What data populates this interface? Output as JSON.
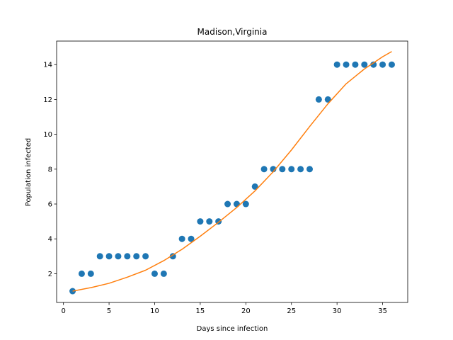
{
  "chart_data": {
    "type": "scatter",
    "title": "Madison,Virginia",
    "xlabel": "Days since infection",
    "ylabel": "Population infected",
    "xlim": [
      -0.75,
      37.75
    ],
    "ylim": [
      0.35,
      15.35
    ],
    "xticks": [
      0,
      5,
      10,
      15,
      20,
      25,
      30,
      35
    ],
    "yticks": [
      2,
      4,
      6,
      8,
      10,
      12,
      14
    ],
    "grid": false,
    "legend": "none",
    "series": [
      {
        "kind": "scatter",
        "color": "#1f77b4",
        "x": [
          1,
          2,
          3,
          4,
          5,
          6,
          7,
          8,
          9,
          10,
          11,
          12,
          13,
          14,
          15,
          16,
          17,
          18,
          19,
          20,
          21,
          22,
          23,
          24,
          25,
          26,
          27,
          28,
          29,
          30,
          31,
          32,
          33,
          34,
          35,
          36
        ],
        "y": [
          1,
          2,
          2,
          3,
          3,
          3,
          3,
          3,
          3,
          2,
          2,
          3,
          4,
          4,
          5,
          5,
          5,
          6,
          6,
          6,
          7,
          8,
          8,
          8,
          8,
          8,
          8,
          12,
          12,
          14,
          14,
          14,
          14,
          14,
          14,
          14
        ]
      },
      {
        "kind": "line",
        "color": "#ff7f0e",
        "x": [
          1,
          3,
          5,
          7,
          9,
          11,
          13,
          15,
          17,
          19,
          21,
          23,
          25,
          27,
          29,
          31,
          33,
          35,
          36
        ],
        "y": [
          1.0,
          1.2,
          1.45,
          1.8,
          2.2,
          2.75,
          3.4,
          4.15,
          4.95,
          5.8,
          6.75,
          7.85,
          9.1,
          10.45,
          11.75,
          12.9,
          13.75,
          14.45,
          14.75
        ]
      }
    ]
  }
}
